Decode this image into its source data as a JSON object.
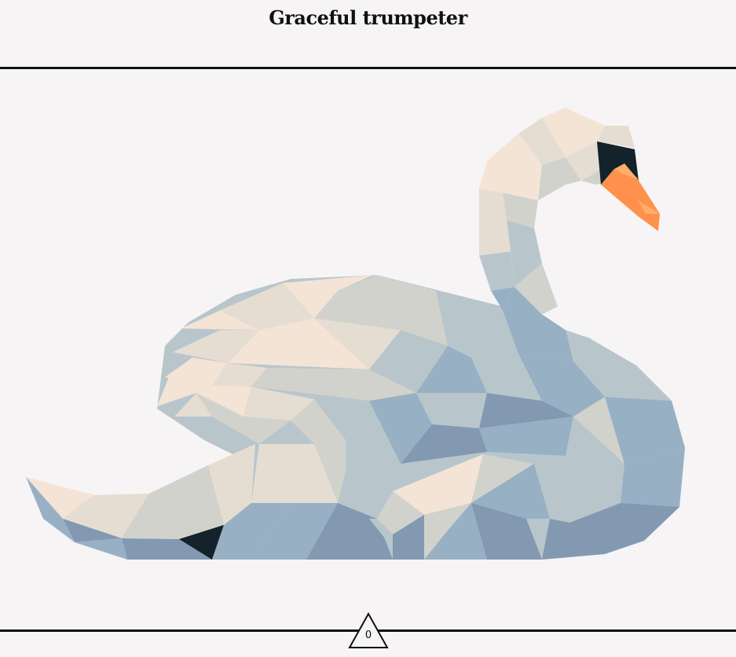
{
  "header": {
    "title": "Graceful trumpeter"
  },
  "footer": {
    "score": "0",
    "score_icon": "triangle-icon"
  },
  "palette": {
    "cream": "#f4e4d6",
    "beige": "#e6ddd2",
    "grey_light": "#d2d2cd",
    "blue_grey_light": "#b8c6cc",
    "blue_grey": "#98b0c4",
    "blue_grey_dark": "#8399b2",
    "black": "#13222b",
    "orange": "#ff914d",
    "orange_light": "#ffae6a"
  }
}
